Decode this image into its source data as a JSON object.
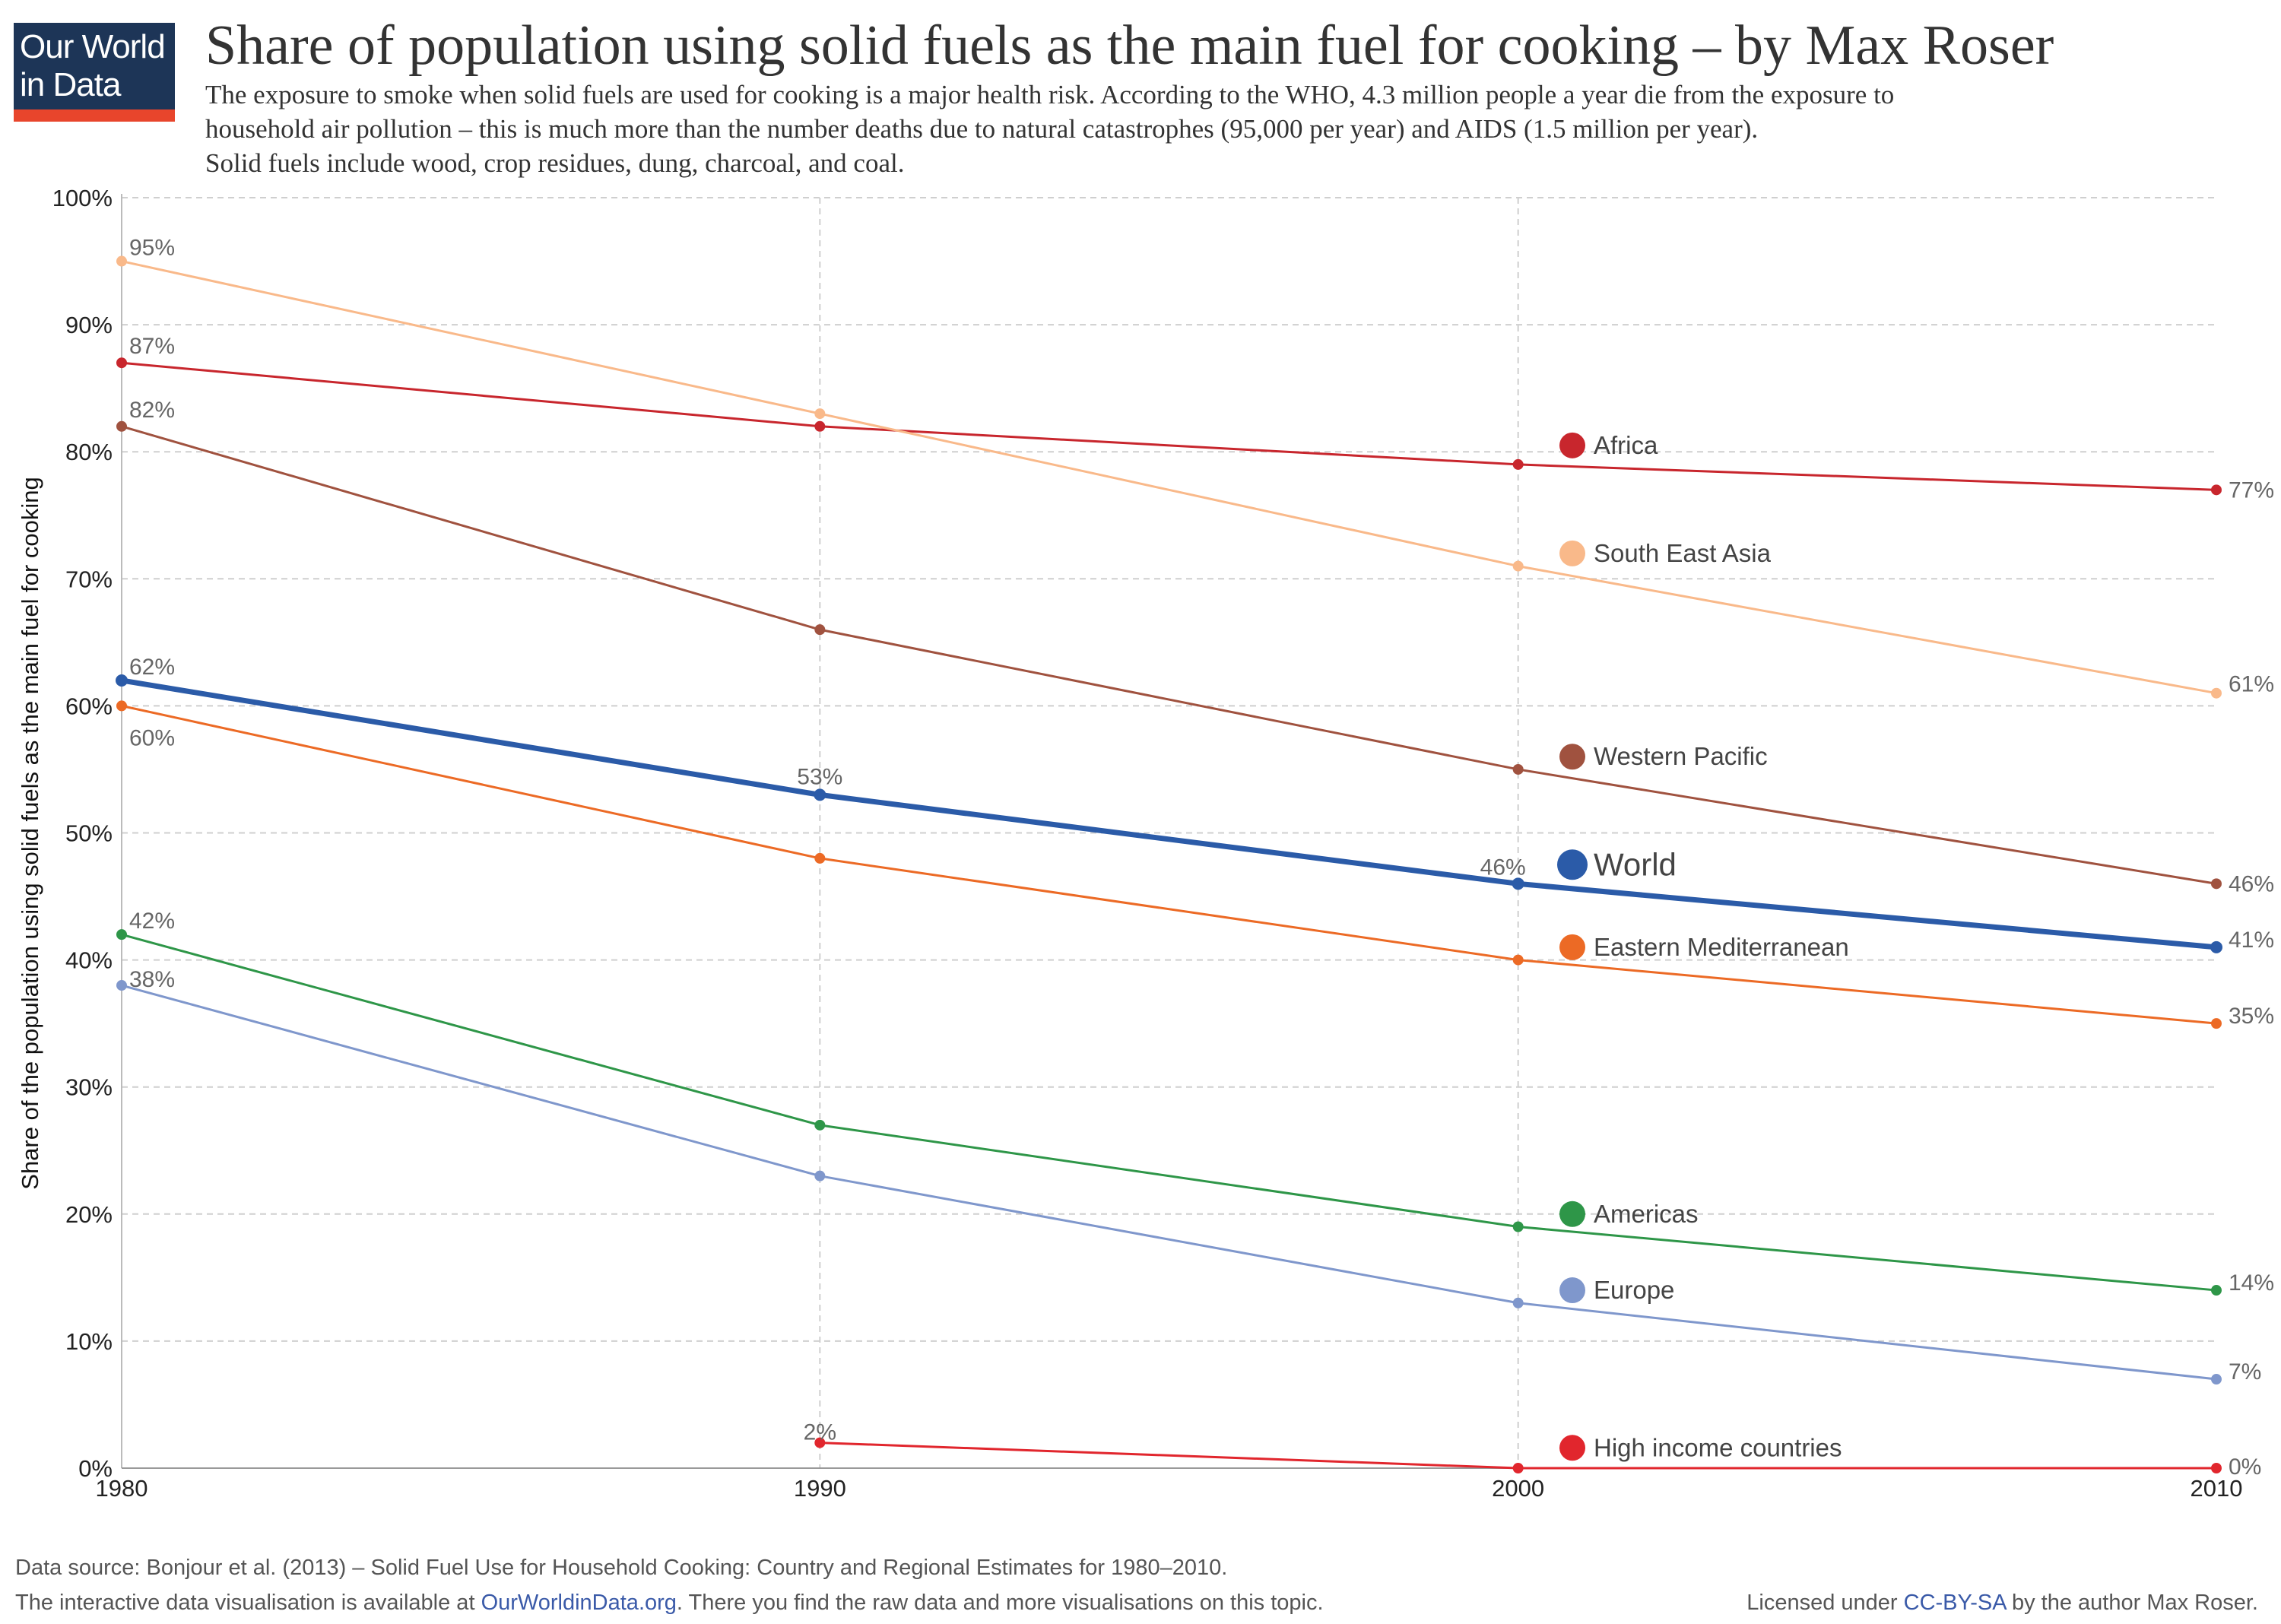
{
  "logo": {
    "line1": "Our World",
    "line2": "in Data"
  },
  "title": "Share of population using solid fuels as the main fuel for cooking – by Max Roser",
  "subtitle": [
    "The exposure to smoke when solid fuels are used for cooking is a major health risk. According to the WHO, 4.3 million people a year die from the exposure to",
    "household air pollution – this is much more than the number deaths due to natural catastrophes (95,000 per year) and AIDS (1.5 million per year).",
    "Solid fuels include wood, crop residues, dung, charcoal, and coal."
  ],
  "footer": {
    "source": "Data source:  Bonjour et al. (2013) – Solid Fuel Use for Household Cooking: Country and Regional Estimates for 1980–2010.",
    "interactive_pre": "The interactive data visualisation is available at ",
    "interactive_link": "OurWorldinData.org",
    "interactive_post": ". There you find the raw data and more visualisations on this topic.",
    "license_pre": "Licensed under ",
    "license_link": "CC-BY-SA",
    "license_post": " by the author Max Roser."
  },
  "chart_data": {
    "type": "line",
    "ylabel": "Share of the population using solid fuels as the main fuel for cooking",
    "xlabel": "",
    "x": [
      1980,
      1990,
      2000,
      2010
    ],
    "xlim": [
      1980,
      2010
    ],
    "ylim": [
      0,
      100
    ],
    "yticks": [
      "0%",
      "10%",
      "20%",
      "30%",
      "40%",
      "50%",
      "60%",
      "70%",
      "80%",
      "90%",
      "100%"
    ],
    "xticks": [
      "1980",
      "1990",
      "2000",
      "2010"
    ],
    "grid": true,
    "series": [
      {
        "name": "Africa",
        "color": "#c8262d",
        "values": [
          87,
          82,
          79,
          77
        ],
        "labels": [
          "87%",
          "",
          "",
          "77%"
        ],
        "legend_y": 80.5
      },
      {
        "name": "South East Asia",
        "color": "#f9b98a",
        "values": [
          95,
          83,
          71,
          61
        ],
        "labels": [
          "95%",
          "",
          "",
          "61%"
        ],
        "legend_y": 72
      },
      {
        "name": "Western Pacific",
        "color": "#a0523f",
        "values": [
          82,
          66,
          55,
          46
        ],
        "labels": [
          "82%",
          "",
          "",
          "46%"
        ],
        "legend_y": 56
      },
      {
        "name": "World",
        "color": "#2b5ba8",
        "values": [
          62,
          53,
          46,
          41
        ],
        "labels": [
          "62%",
          "53%",
          "46%",
          "41%"
        ],
        "legend_y": 47.5,
        "highlight": true
      },
      {
        "name": "Eastern Mediterranean",
        "color": "#ec6a25",
        "values": [
          60,
          48,
          40,
          35
        ],
        "labels": [
          "60%",
          "",
          "",
          "35%"
        ],
        "legend_y": 41
      },
      {
        "name": "Americas",
        "color": "#2e9648",
        "values": [
          42,
          27,
          19,
          14
        ],
        "labels": [
          "42%",
          "",
          "",
          "14%"
        ],
        "legend_y": 20
      },
      {
        "name": "Europe",
        "color": "#7f97cc",
        "values": [
          38,
          23,
          13,
          7
        ],
        "labels": [
          "38%",
          "",
          "",
          "7%"
        ],
        "legend_y": 14
      },
      {
        "name": "High income countries",
        "color": "#e1262d",
        "values": [
          null,
          2,
          0,
          0
        ],
        "labels": [
          "",
          "2%",
          "",
          "0%"
        ],
        "legend_y": 1.6
      }
    ]
  }
}
